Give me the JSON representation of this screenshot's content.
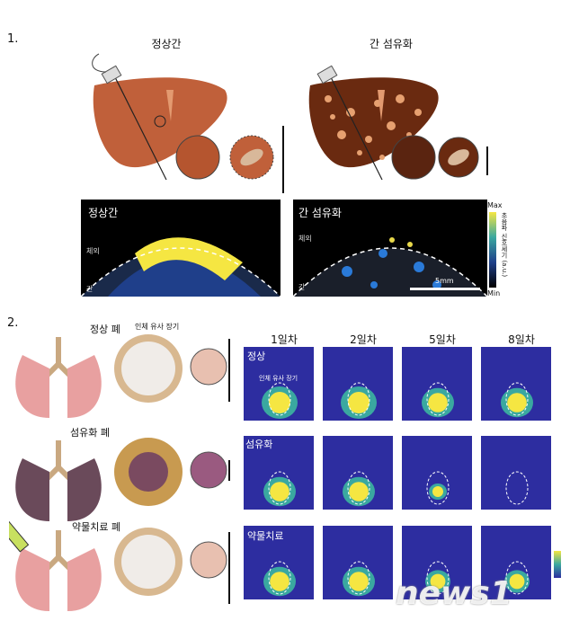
{
  "section1": {
    "number": "1.",
    "normal_title": "정상간",
    "fibrosis_title": "간 섬유화",
    "img_left_label": "정상간",
    "img_right_label": "간 섬유화",
    "outside_label": "체외",
    "liver_label": "간",
    "scale": "5mm",
    "colorbar_max": "Max",
    "colorbar_min": "Min",
    "colorbar_title": "초음파 신호세기 (a.u.)"
  },
  "section2": {
    "number": "2.",
    "rows": [
      {
        "title": "정상 폐",
        "panel_label": "정상"
      },
      {
        "title": "섬유화 폐",
        "panel_label": "섬유화"
      },
      {
        "title": "약물치료 폐",
        "panel_label": "약물치료"
      }
    ],
    "organoid_label": "인체 유사 장기",
    "panel_organoid_label": "인체 유사 장기",
    "days": [
      "1일차",
      "2일차",
      "5일차",
      "8일차"
    ]
  },
  "watermark": "news1",
  "colors": {
    "panel_bg": "#2d2da0",
    "liver_normal": "#c0603a",
    "liver_fibrosis": "#6a2a10",
    "signal_yellow": "#f5e642"
  }
}
